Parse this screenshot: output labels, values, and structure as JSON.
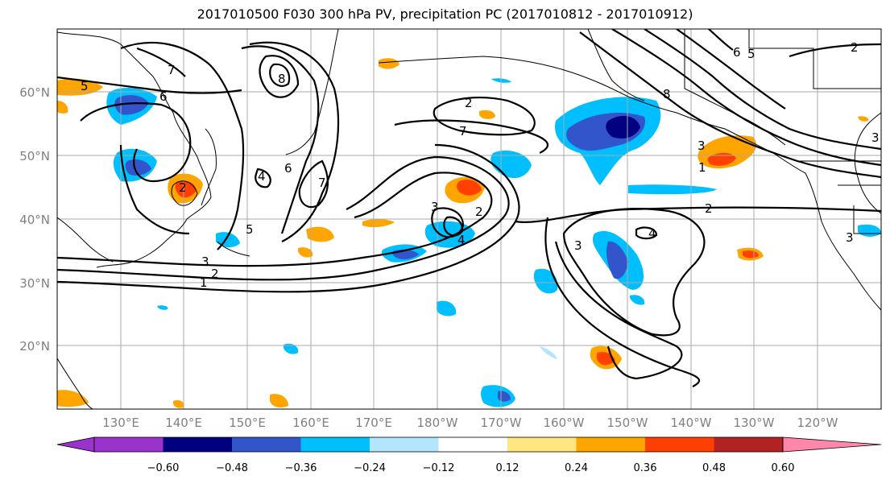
{
  "title": "2017010500 F030 300 hPa PV, precipitation PC (2017010812 - 2017010912)",
  "map": {
    "lat_labels": [
      "60°N",
      "50°N",
      "40°N",
      "30°N",
      "20°N"
    ],
    "lon_labels": [
      "130°E",
      "140°E",
      "150°E",
      "160°E",
      "170°E",
      "180°W",
      "170°W",
      "160°W",
      "150°W",
      "140°W",
      "130°W",
      "120°W"
    ],
    "contour_labels": [
      "5",
      "6",
      "7",
      "8",
      "2",
      "4",
      "7",
      "6",
      "5",
      "3",
      "2",
      "1",
      "2",
      "7",
      "2",
      "3",
      "4",
      "2",
      "3",
      "4",
      "3",
      "1",
      "2",
      "3",
      "5",
      "6",
      "8",
      "3"
    ]
  },
  "colorbar": {
    "colors": [
      "#9933cc",
      "#000080",
      "#3355cc",
      "#00bfff",
      "#b3e5fc",
      "#ffffff",
      "#ffe680",
      "#ffa500",
      "#ff4000",
      "#b22222",
      "#ff88aa"
    ],
    "labels": [
      "−0.60",
      "−0.48",
      "−0.36",
      "−0.24",
      "−0.12",
      "0.12",
      "0.24",
      "0.36",
      "0.48",
      "0.60"
    ]
  }
}
